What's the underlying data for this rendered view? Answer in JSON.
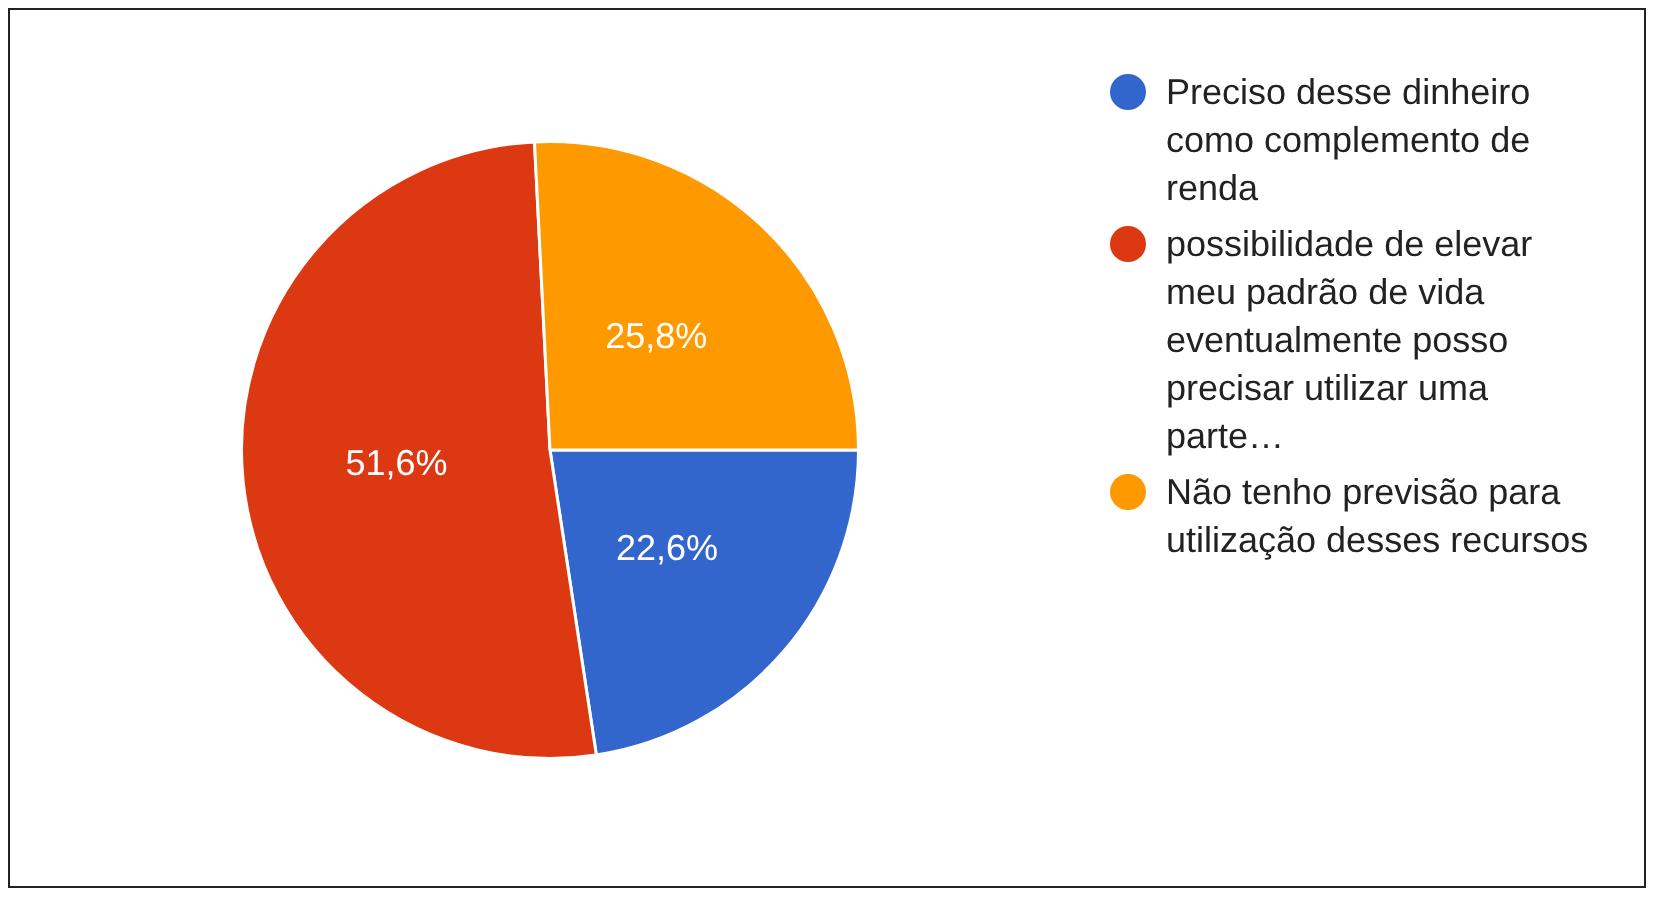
{
  "chart_data": {
    "type": "pie",
    "categories": [
      "Preciso desse dinheiro como complemento de renda",
      "possibilidade de elevar meu padrão de vida eventualmente posso precisar utilizar uma parte…",
      "Não tenho previsão para utilização desses recursos"
    ],
    "values": [
      22.6,
      51.6,
      25.8
    ],
    "colors": [
      "#3366cc",
      "#dc3912",
      "#ff9900"
    ],
    "value_labels": [
      "22,6%",
      "51,6%",
      "25,8%"
    ],
    "legend": "right"
  }
}
